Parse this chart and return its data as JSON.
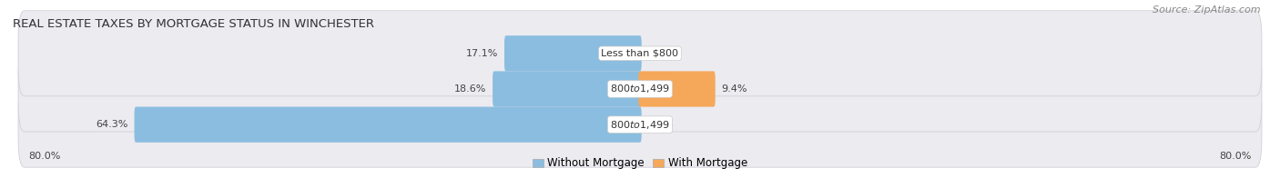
{
  "title": "REAL ESTATE TAXES BY MORTGAGE STATUS IN WINCHESTER",
  "source": "Source: ZipAtlas.com",
  "rows": [
    {
      "label": "Less than $800",
      "without_mortgage": 17.1,
      "with_mortgage": 0.0
    },
    {
      "label": "$800 to $1,499",
      "without_mortgage": 18.6,
      "with_mortgage": 9.4
    },
    {
      "label": "$800 to $1,499",
      "without_mortgage": 64.3,
      "with_mortgage": 0.0
    }
  ],
  "x_left_label": "80.0%",
  "x_right_label": "80.0%",
  "xlim": 80.0,
  "bar_color_without": "#8BBDE0",
  "bar_color_with": "#F5A85A",
  "row_bg_color": "#EBEBF0",
  "row_border_color": "#D0D0D8",
  "label_bg_color": "#FFFFFF",
  "title_fontsize": 9.5,
  "source_fontsize": 8,
  "label_fontsize": 8,
  "value_fontsize": 8,
  "legend_fontsize": 8.5,
  "axis_label_fontsize": 8
}
